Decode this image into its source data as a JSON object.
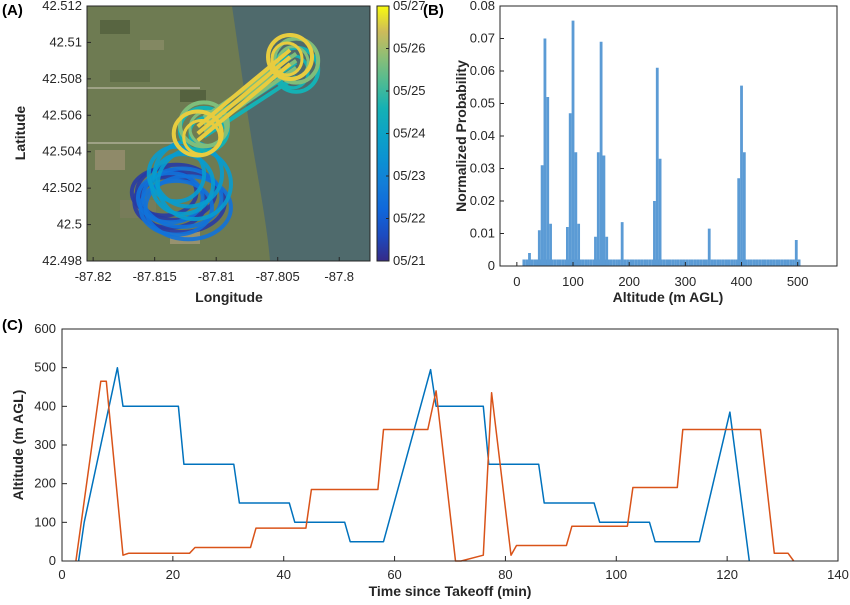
{
  "panels": {
    "a": {
      "label": "(A)"
    },
    "b": {
      "label": "(B)"
    },
    "c": {
      "label": "(C)"
    }
  },
  "colors": {
    "blue": "#0072BD",
    "orange": "#D95319",
    "bar": "#5B9BD5",
    "lake": "#4f6a6c",
    "land": "#6e7b52"
  },
  "chart_data": [
    {
      "type": "scatter",
      "panel": "A",
      "xlabel": "Longitude",
      "ylabel": "Latitude",
      "xlim": [
        -87.8205,
        -87.7975
      ],
      "ylim": [
        42.498,
        42.512
      ],
      "xticks": [
        -87.82,
        -87.815,
        -87.81,
        -87.805,
        -87.8
      ],
      "xtick_labels": [
        "-87.82",
        "-87.815",
        "-87.81",
        "-87.805",
        "-87.8"
      ],
      "yticks": [
        42.498,
        42.5,
        42.502,
        42.504,
        42.506,
        42.508,
        42.51,
        42.512
      ],
      "ytick_labels": [
        "42.498",
        "42.5",
        "42.502",
        "42.504",
        "42.506",
        "42.508",
        "42.51",
        "42.512"
      ],
      "background": "satellite imagery (shoreline, lake to the east)",
      "colorbar": {
        "colormap": "parula",
        "ticks": [
          "05/21",
          "05/22",
          "05/23",
          "05/24",
          "05/25",
          "05/26",
          "05/27"
        ]
      },
      "series": [
        {
          "date_level": 0.05,
          "center": [
            -87.8135,
            42.5015
          ],
          "xradius": 0.0035,
          "yradius": 0.0017
        },
        {
          "date_level": 0.25,
          "center": [
            -87.813,
            42.5012
          ],
          "xradius": 0.0035,
          "yradius": 0.0018
        },
        {
          "date_level": 0.45,
          "center": [
            -87.8125,
            42.5025
          ],
          "xradius": 0.003,
          "yradius": 0.002
        },
        {
          "date_level": 0.6,
          "from": [
            -87.811,
            42.5052
          ],
          "to": [
            -87.8035,
            42.5085
          ]
        },
        {
          "date_level": 0.78,
          "from": [
            -87.811,
            42.5055
          ],
          "to": [
            -87.8035,
            42.509
          ]
        },
        {
          "date_level": 0.95,
          "from": [
            -87.8115,
            42.505
          ],
          "to": [
            -87.804,
            42.5092
          ]
        }
      ]
    },
    {
      "type": "bar",
      "panel": "B",
      "xlabel": "Altitude (m AGL)",
      "ylabel": "Normalized Probability",
      "xlim": [
        -30,
        570
      ],
      "ylim": [
        0,
        0.08
      ],
      "xticks": [
        0,
        100,
        200,
        300,
        400,
        500
      ],
      "yticks": [
        0,
        0.01,
        0.02,
        0.03,
        0.04,
        0.05,
        0.06,
        0.07,
        0.08
      ],
      "ytick_labels": [
        "0",
        "0.01",
        "0.02",
        "0.03",
        "0.04",
        "0.05",
        "0.06",
        "0.07",
        "0.08"
      ],
      "bin_width": 5,
      "peaks": [
        {
          "center": 50,
          "values": [
            0.011,
            0.031,
            0.07,
            0.052,
            0.013
          ]
        },
        {
          "center": 100,
          "values": [
            0.012,
            0.047,
            0.0755,
            0.035,
            0.013
          ]
        },
        {
          "center": 150,
          "values": [
            0.009,
            0.035,
            0.069,
            0.034,
            0.009
          ]
        },
        {
          "center": 250,
          "values": [
            0.02,
            0.061,
            0.033
          ]
        },
        {
          "center": 400,
          "values": [
            0.027,
            0.0555,
            0.035
          ]
        }
      ],
      "small_bars": [
        {
          "x": 20,
          "value": 0.004
        },
        {
          "x": 185,
          "value": 0.0135
        },
        {
          "x": 340,
          "value": 0.0115
        },
        {
          "x": 495,
          "value": 0.008
        }
      ],
      "baseline": 0.002
    },
    {
      "type": "line",
      "panel": "C",
      "xlabel": "Time since Takeoff (min)",
      "ylabel": "Altitude (m AGL)",
      "xlim": [
        0,
        140
      ],
      "ylim": [
        0,
        600
      ],
      "xticks": [
        0,
        20,
        40,
        60,
        80,
        100,
        120,
        140
      ],
      "yticks": [
        0,
        100,
        200,
        300,
        400,
        500,
        600
      ],
      "series": [
        {
          "color": "blue",
          "x": [
            3,
            4,
            10,
            11,
            21,
            22,
            31,
            32,
            41,
            42,
            51,
            52,
            58,
            66.5,
            67.5,
            76,
            77,
            86,
            87,
            96,
            97,
            106,
            107,
            115,
            120.5,
            124
          ],
          "y": [
            0,
            100,
            500,
            400,
            400,
            250,
            250,
            150,
            150,
            100,
            100,
            50,
            50,
            495,
            400,
            400,
            250,
            250,
            150,
            150,
            100,
            100,
            50,
            50,
            385,
            0
          ]
        },
        {
          "color": "orange",
          "x": [
            2.5,
            7,
            8,
            11,
            12,
            23,
            24,
            34,
            35,
            44,
            45,
            57,
            58,
            66,
            67.5,
            71,
            72,
            76,
            77.5,
            81,
            82,
            91,
            92,
            102,
            103,
            111,
            112,
            120,
            121,
            126,
            128.5,
            131,
            132
          ],
          "y": [
            0,
            465,
            465,
            15,
            20,
            20,
            35,
            35,
            85,
            85,
            185,
            185,
            340,
            340,
            440,
            0,
            0,
            15,
            435,
            15,
            40,
            40,
            90,
            90,
            190,
            190,
            340,
            340,
            340,
            340,
            20,
            20,
            0
          ]
        }
      ]
    }
  ]
}
